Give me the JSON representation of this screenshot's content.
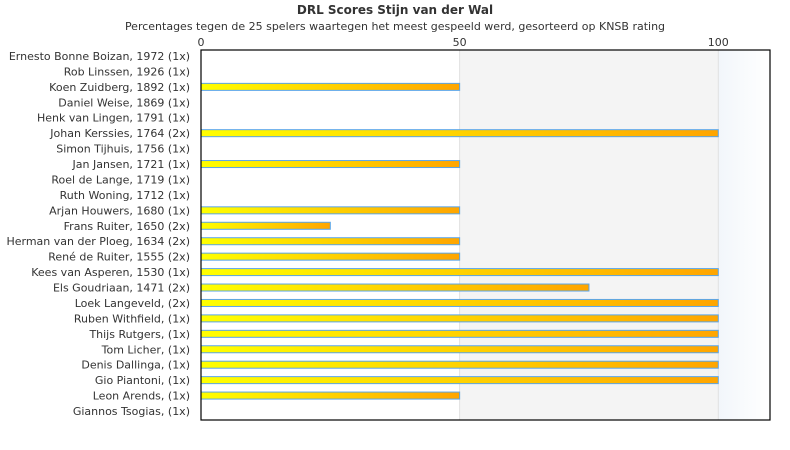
{
  "chart_data": {
    "type": "bar",
    "orientation": "horizontal",
    "title": "DRL Scores Stijn van der Wal",
    "subtitle": "Percentages tegen de 25 spelers waartegen het meest gespeeld werd, gesorteerd op KNSB rating",
    "xlim": [
      0,
      110
    ],
    "xticks": [
      0,
      50,
      100
    ],
    "categories": [
      "Ernesto Bonne Boizan, 1972 (1x)",
      "Rob Linssen, 1926 (1x)",
      "Koen Zuidberg, 1892 (1x)",
      "Daniel Weise, 1869 (1x)",
      "Henk van Lingen, 1791 (1x)",
      "Johan Kerssies, 1764 (2x)",
      "Simon Tijhuis, 1756 (1x)",
      "Jan Jansen, 1721 (1x)",
      "Roel de Lange, 1719 (1x)",
      "Ruth Woning, 1712 (1x)",
      "Arjan Houwers, 1680 (1x)",
      "Frans Ruiter, 1650 (2x)",
      "Herman van der Ploeg, 1634 (2x)",
      "René de Ruiter, 1555 (2x)",
      "Kees van Asperen, 1530 (1x)",
      "Els Goudriaan, 1471 (2x)",
      "Loek Langeveld,  (2x)",
      "Ruben Withfield,  (1x)",
      "Thijs Rutgers,  (1x)",
      "Tom Licher,  (1x)",
      "Denis Dallinga,  (1x)",
      "Gio Piantoni,  (1x)",
      "Leon Arends,  (1x)",
      "Giannos Tsogias,  (1x)"
    ],
    "values": [
      0,
      0,
      50,
      0,
      0,
      100,
      0,
      50,
      0,
      0,
      50,
      25,
      50,
      50,
      100,
      75,
      100,
      100,
      100,
      100,
      100,
      100,
      50,
      0
    ],
    "colors": {
      "bar_start": "#ffff00",
      "bar_end": "#ffa500",
      "bar_border": "#5aa5e8",
      "band_mid": "#f4f4f4",
      "band_high": "#f5f9fd"
    }
  }
}
